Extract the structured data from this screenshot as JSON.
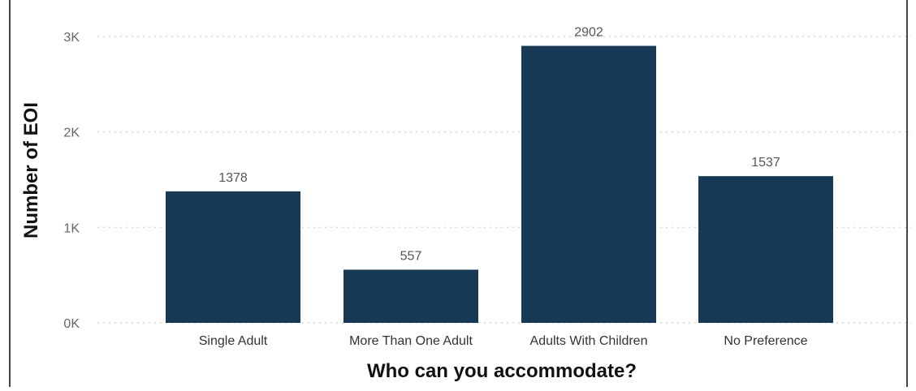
{
  "chart_data": {
    "type": "bar",
    "xlabel": "Who can you accommodate?",
    "ylabel": "Number of EOI",
    "categories": [
      "Single Adult",
      "More Than One Adult",
      "Adults With Children",
      "No Preference"
    ],
    "values": [
      1378,
      557,
      2902,
      1537
    ],
    "data_labels": [
      "1378",
      "557",
      "2902",
      "1537"
    ],
    "yticks": [
      0,
      1000,
      2000,
      3000
    ],
    "ytick_labels": [
      "0K",
      "1K",
      "2K",
      "3K"
    ],
    "ylim": [
      0,
      3000
    ],
    "grid": true,
    "grid_style": "dotted-horizontal",
    "colors": {
      "bar": "#173955",
      "grid": "#d6d6d6",
      "frame": "#444444"
    }
  }
}
